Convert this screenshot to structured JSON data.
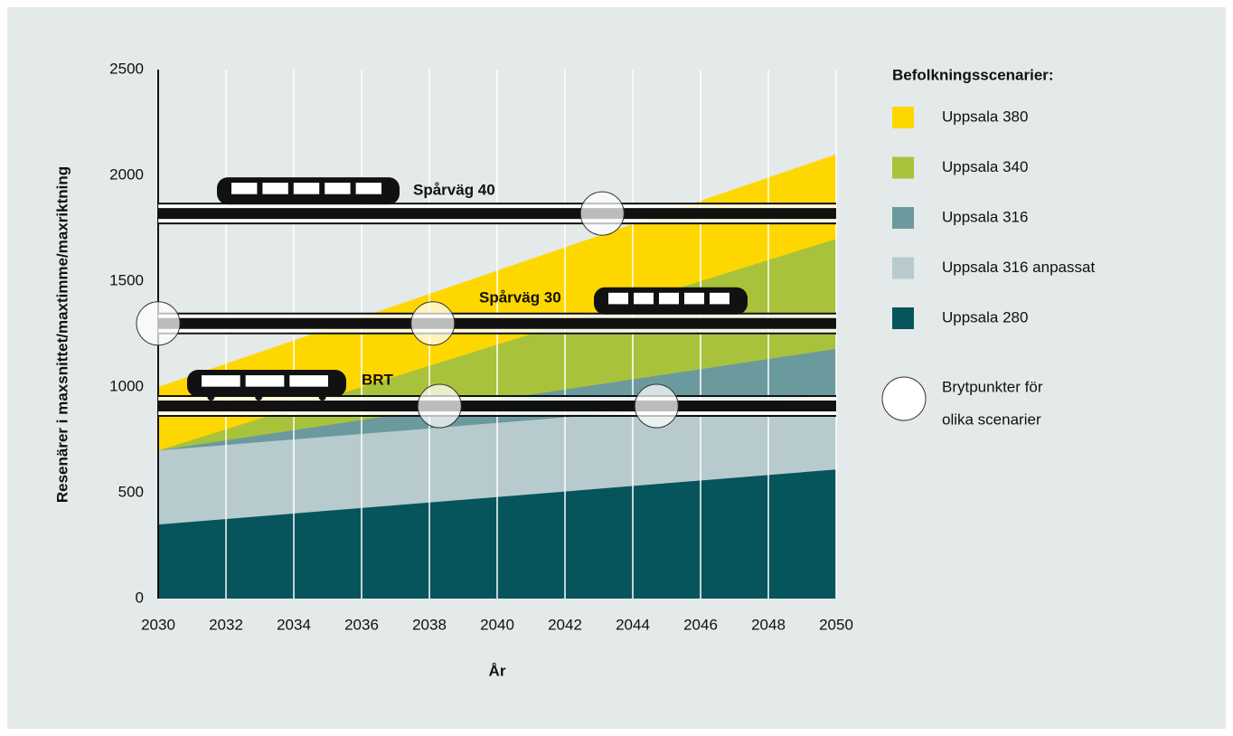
{
  "chart_data": {
    "type": "area",
    "ylabel": "Resenärer i maxsnittet/maxtimme/maxriktning",
    "xlabel": "År",
    "xlim": [
      2030,
      2050
    ],
    "xticks": [
      2030,
      2032,
      2034,
      2036,
      2038,
      2040,
      2042,
      2044,
      2046,
      2048,
      2050
    ],
    "ylim": [
      0,
      2500
    ],
    "yticks": [
      0,
      500,
      1000,
      1500,
      2000,
      2500
    ],
    "grid": true,
    "legend_title": "Befolkningsscenarier:",
    "series": [
      {
        "name": "Uppsala 380",
        "color": "#ffd700",
        "x": [
          2030,
          2050
        ],
        "values": [
          1000,
          2100
        ]
      },
      {
        "name": "Uppsala 340",
        "color": "#a9c23c",
        "x": [
          2030,
          2050
        ],
        "values": [
          700,
          1700
        ]
      },
      {
        "name": "Uppsala 316",
        "color": "#6b9a9e",
        "x": [
          2030,
          2050
        ],
        "values": [
          700,
          1180
        ]
      },
      {
        "name": "Uppsala 316 anpassat",
        "color": "#b7cbce",
        "x": [
          2030,
          2050
        ],
        "values": [
          700,
          960
        ]
      },
      {
        "name": "Uppsala 280",
        "color": "#06545c",
        "x": [
          2030,
          2050
        ],
        "values": [
          350,
          610
        ]
      }
    ],
    "capacity_lines": [
      {
        "name": "Spårväg 40",
        "value": 1820
      },
      {
        "name": "Spårväg 30",
        "value": 1300
      },
      {
        "name": "BRT",
        "value": 910
      }
    ],
    "breakpoints": {
      "label": [
        "Brytpunkter för",
        "olika scenarier"
      ],
      "x": [
        2030,
        2038.1,
        2043.1,
        2038.3,
        2044.7
      ],
      "values": [
        1300,
        1300,
        1820,
        910,
        910
      ]
    }
  }
}
